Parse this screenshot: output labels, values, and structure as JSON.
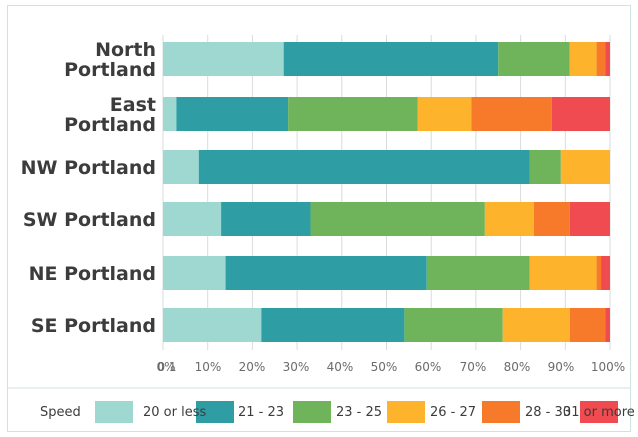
{
  "chart_data": {
    "type": "bar",
    "orientation": "horizontal",
    "stacked": true,
    "categories": [
      "North Portland",
      "East Portland",
      "NW Portland",
      "SW Portland",
      "NE Portland",
      "SE Portland"
    ],
    "category_lines": [
      [
        "North",
        "Portland"
      ],
      [
        "East",
        "Portland"
      ],
      [
        "NW Portland"
      ],
      [
        "SW Portland"
      ],
      [
        "NE Portland"
      ],
      [
        "SE Portland"
      ]
    ],
    "legend_title": "Speed",
    "series": [
      {
        "name": "20 or less",
        "color": "#9fd8d0",
        "values": [
          27,
          3,
          8,
          13,
          14,
          22
        ]
      },
      {
        "name": "21 - 23",
        "color": "#2f9ea4",
        "values": [
          48,
          25,
          74,
          20,
          45,
          32
        ]
      },
      {
        "name": "23 - 25",
        "color": "#6fb35a",
        "values": [
          16,
          29,
          7,
          39,
          23,
          22
        ]
      },
      {
        "name": "26 - 27",
        "color": "#fdb32c",
        "values": [
          6,
          12,
          11,
          11,
          15,
          15
        ]
      },
      {
        "name": "28 - 30",
        "color": "#f7792a",
        "values": [
          2,
          18,
          0,
          8,
          1,
          8
        ]
      },
      {
        "name": "31 or more",
        "color": "#ef4b50",
        "values": [
          1,
          13,
          0,
          9,
          2,
          1
        ]
      }
    ],
    "xticks": [
      "0 1",
      "0%",
      "10%",
      "20%",
      "30%",
      "40%",
      "50%",
      "60%",
      "70%",
      "80%",
      "90%",
      "100%"
    ],
    "xlim": [
      0,
      100
    ],
    "grid": true,
    "legend_position": "bottom"
  }
}
